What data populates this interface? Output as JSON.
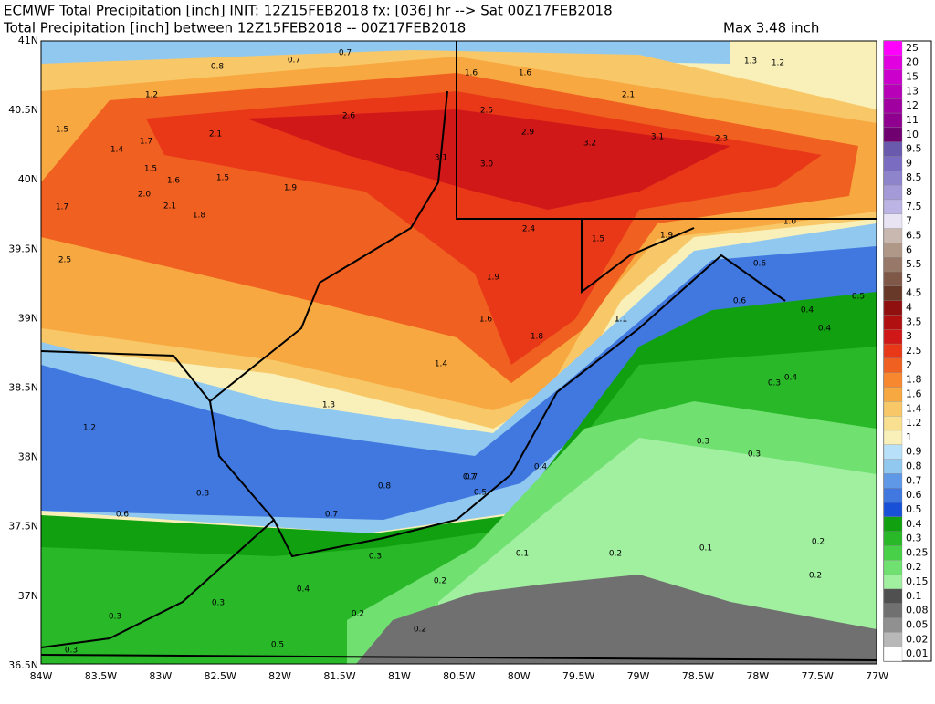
{
  "header": {
    "line1": "ECMWF Total Precipitation [inch] INIT: 12Z15FEB2018 fx: [036] hr --> Sat 00Z17FEB2018",
    "line2": "Total Precipitation [inch] between 12Z15FEB2018 -- 00Z17FEB2018",
    "max": "Max 3.48 inch"
  },
  "axes": {
    "lat": [
      "41N",
      "40.5N",
      "40N",
      "39.5N",
      "39N",
      "38.5N",
      "38N",
      "37.5N",
      "37N",
      "36.5N"
    ],
    "lon": [
      "84W",
      "83.5W",
      "83W",
      "82.5W",
      "82W",
      "81.5W",
      "81W",
      "80.5W",
      "80W",
      "79.5W",
      "79W",
      "78.5W",
      "78W",
      "77.5W",
      "77W"
    ]
  },
  "colorbar": {
    "levels": [
      "25",
      "20",
      "15",
      "13",
      "12",
      "11",
      "10",
      "9.5",
      "9",
      "8.5",
      "8",
      "7.5",
      "7",
      "6.5",
      "6",
      "5.5",
      "5",
      "4.5",
      "4",
      "3.5",
      "3",
      "2.5",
      "2",
      "1.8",
      "1.6",
      "1.4",
      "1.2",
      "1",
      "0.9",
      "0.8",
      "0.7",
      "0.6",
      "0.5",
      "0.4",
      "0.3",
      "0.25",
      "0.2",
      "0.15",
      "0.1",
      "0.08",
      "0.05",
      "0.02",
      "0.01"
    ],
    "colors": [
      "#ff00ff",
      "#e000e0",
      "#cc00cc",
      "#b800b8",
      "#a000a0",
      "#900090",
      "#700070",
      "#6a5aad",
      "#7a6cc0",
      "#8e84cc",
      "#a49ad8",
      "#bbb4e4",
      "#e8e4f4",
      "#c8b8b0",
      "#b09888",
      "#987868",
      "#805848",
      "#683828",
      "#901010",
      "#b01010",
      "#d01818",
      "#e83818",
      "#f06020",
      "#f88830",
      "#f8a840",
      "#f8c868",
      "#f8e090",
      "#f8f0b8",
      "#b8e0f8",
      "#90c8f0",
      "#6098e8",
      "#4078e0",
      "#1850d8",
      "#10a010",
      "#28b828",
      "#48d048",
      "#70e070",
      "#a0f0a0",
      "#505050",
      "#707070",
      "#909090",
      "#b8b8b8",
      "#ffffff"
    ]
  },
  "contour_labels": [
    "0.8",
    "0.7",
    "0.7",
    "1.2",
    "1.5",
    "1.4",
    "1.7",
    "2.1",
    "2.6",
    "1.6",
    "1.6",
    "2.5",
    "2.9",
    "3.2",
    "2.1",
    "3.1",
    "2.3",
    "1.3",
    "1.2",
    "3.1",
    "3.0",
    "1.5",
    "1.6",
    "1.5",
    "1.9",
    "2.0",
    "2.1",
    "1.8",
    "1.7",
    "2.5",
    "2.4",
    "1.5",
    "1.9",
    "1.9",
    "1.6",
    "1.4",
    "1.8",
    "1.1",
    "1.3",
    "1.2",
    "0.8",
    "0.6",
    "0.8",
    "0.7",
    "0.7",
    "0.5",
    "0.4",
    "0.3",
    "0.6",
    "0.6",
    "0.5",
    "0.4",
    "0.4",
    "0.3",
    "0.4",
    "0.3",
    "0.3",
    "0.2",
    "0.1",
    "0.2",
    "0.1",
    "0.2",
    "0.2",
    "0.3",
    "0.3",
    "0.4",
    "0.2",
    "0.5",
    "0.2",
    "0.3",
    "0.7",
    "1.0",
    "1.1"
  ]
}
